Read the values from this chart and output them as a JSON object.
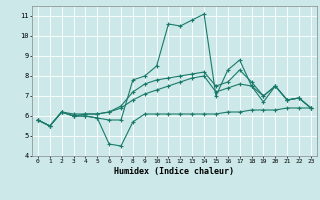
{
  "title": "",
  "xlabel": "Humidex (Indice chaleur)",
  "bg_color": "#cce8e8",
  "line_color": "#1a7a6a",
  "grid_color": "#ffffff",
  "xlim": [
    -0.5,
    23.5
  ],
  "ylim": [
    4,
    11.5
  ],
  "yticks": [
    4,
    5,
    6,
    7,
    8,
    9,
    10,
    11
  ],
  "xticks": [
    0,
    1,
    2,
    3,
    4,
    5,
    6,
    7,
    8,
    9,
    10,
    11,
    12,
    13,
    14,
    15,
    16,
    17,
    18,
    19,
    20,
    21,
    22,
    23
  ],
  "line1_x": [
    0,
    1,
    2,
    3,
    4,
    5,
    6,
    7,
    8,
    9,
    10,
    11,
    12,
    13,
    14,
    15,
    16,
    17,
    18,
    19,
    20,
    21,
    22,
    23
  ],
  "line1_y": [
    5.8,
    5.5,
    6.2,
    6.0,
    6.0,
    5.9,
    4.6,
    4.5,
    5.7,
    6.1,
    6.1,
    6.1,
    6.1,
    6.1,
    6.1,
    6.1,
    6.2,
    6.2,
    6.3,
    6.3,
    6.3,
    6.4,
    6.4,
    6.4
  ],
  "line2_x": [
    0,
    1,
    2,
    3,
    4,
    5,
    6,
    7,
    8,
    9,
    10,
    11,
    12,
    13,
    14,
    15,
    16,
    17,
    18,
    19,
    20,
    21,
    22,
    23
  ],
  "line2_y": [
    5.8,
    5.5,
    6.2,
    6.0,
    6.0,
    5.9,
    5.8,
    5.8,
    7.8,
    8.0,
    8.5,
    10.6,
    10.5,
    10.8,
    11.1,
    7.0,
    8.3,
    8.8,
    7.5,
    6.7,
    7.5,
    6.8,
    6.9,
    6.4
  ],
  "line3_x": [
    0,
    1,
    2,
    3,
    4,
    5,
    6,
    7,
    8,
    9,
    10,
    11,
    12,
    13,
    14,
    15,
    16,
    17,
    18,
    19,
    20,
    21,
    22,
    23
  ],
  "line3_y": [
    5.8,
    5.5,
    6.2,
    6.0,
    6.1,
    6.1,
    6.2,
    6.4,
    6.8,
    7.1,
    7.3,
    7.5,
    7.7,
    7.9,
    8.0,
    7.2,
    7.4,
    7.6,
    7.5,
    7.0,
    7.5,
    6.8,
    6.9,
    6.4
  ],
  "line4_x": [
    0,
    1,
    2,
    3,
    4,
    5,
    6,
    7,
    8,
    9,
    10,
    11,
    12,
    13,
    14,
    15,
    16,
    17,
    18,
    19,
    20,
    21,
    22,
    23
  ],
  "line4_y": [
    5.8,
    5.5,
    6.2,
    6.1,
    6.1,
    6.1,
    6.2,
    6.5,
    7.2,
    7.6,
    7.8,
    7.9,
    8.0,
    8.1,
    8.2,
    7.5,
    7.7,
    8.3,
    7.7,
    7.0,
    7.5,
    6.8,
    6.9,
    6.4
  ]
}
